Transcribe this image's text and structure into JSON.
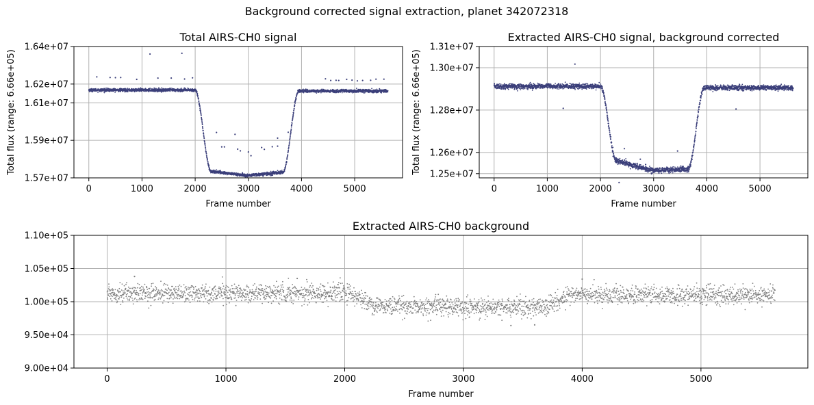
{
  "figure": {
    "suptitle": "Background corrected signal extraction, planet 342072318"
  },
  "chart_data": [
    {
      "type": "scatter",
      "title": "Total AIRS-CH0 signal",
      "xlabel": "Frame number",
      "ylabel": "Total flux (range: 6.66e+05)",
      "xlim": [
        -280,
        5900
      ],
      "ylim": [
        15700000,
        16400000
      ],
      "xticks": [
        0,
        1000,
        2000,
        3000,
        4000,
        5000
      ],
      "xtick_labels": [
        "0",
        "1000",
        "2000",
        "3000",
        "4000",
        "5000"
      ],
      "yticks": [
        15700000,
        15900000,
        16100000,
        16200000,
        16400000
      ],
      "ytick_labels": [
        "1.57e+07",
        "1.59e+07",
        "1.61e+07",
        "1.62e+07",
        "1.64e+07"
      ],
      "grid": true,
      "marker_color": "#3b3f7a",
      "series": [
        {
          "curve": {
            "baseline_before": 16168000,
            "baseline_after": 16163000,
            "ingress_start": 2000,
            "ingress_end": 2300,
            "egress_start": 3650,
            "egress_end": 3950,
            "floor_at_ingress": 15735000,
            "floor_middle": 15712000,
            "floor_at_egress": 15730000,
            "noise": 4000,
            "n_frames": 5625
          },
          "outliers": [
            [
              150,
              16238000
            ],
            [
              400,
              16235000
            ],
            [
              500,
              16234000
            ],
            [
              600,
              16235000
            ],
            [
              900,
              16225000
            ],
            [
              1150,
              16360000
            ],
            [
              1300,
              16232000
            ],
            [
              1550,
              16232000
            ],
            [
              1750,
              16364000
            ],
            [
              1800,
              16227000
            ],
            [
              1950,
              16233000
            ],
            [
              2400,
              15942000
            ],
            [
              2500,
              15865000
            ],
            [
              2550,
              15865000
            ],
            [
              2750,
              15932000
            ],
            [
              2800,
              15853000
            ],
            [
              2850,
              15844000
            ],
            [
              3000,
              15838000
            ],
            [
              3050,
              15818000
            ],
            [
              3250,
              15862000
            ],
            [
              3300,
              15852000
            ],
            [
              3450,
              15866000
            ],
            [
              3550,
              15869000
            ],
            [
              3550,
              15912000
            ],
            [
              3750,
              15943000
            ],
            [
              4450,
              16228000
            ],
            [
              4550,
              16219000
            ],
            [
              4650,
              16220000
            ],
            [
              4700,
              16219000
            ],
            [
              4850,
              16225000
            ],
            [
              4950,
              16221000
            ],
            [
              5050,
              16217000
            ],
            [
              5150,
              16219000
            ],
            [
              5300,
              16220000
            ],
            [
              5400,
              16226000
            ],
            [
              5550,
              16226000
            ]
          ]
        }
      ]
    },
    {
      "type": "scatter",
      "title": "Extracted AIRS-CH0 signal, background corrected",
      "xlabel": "Frame number",
      "ylabel": "Total flux (range: 6.66e+05)",
      "xlim": [
        -280,
        5900
      ],
      "ylim": [
        12480000,
        13100000
      ],
      "xticks": [
        0,
        1000,
        2000,
        3000,
        4000,
        5000
      ],
      "xtick_labels": [
        "0",
        "1000",
        "2000",
        "3000",
        "4000",
        "5000"
      ],
      "yticks": [
        12500000,
        12600000,
        12800000,
        13000000,
        13100000
      ],
      "ytick_labels": [
        "1.25e+07",
        "1.26e+07",
        "1.28e+07",
        "1.30e+07",
        "1.31e+07"
      ],
      "grid": true,
      "marker_color": "#3b3f7a",
      "series": [
        {
          "curve": {
            "baseline_before": 12912000,
            "baseline_after": 12905000,
            "ingress_start": 2000,
            "ingress_end": 2300,
            "egress_start": 3650,
            "egress_end": 3950,
            "floor_at_ingress": 12560000,
            "floor_middle": 12515000,
            "floor_at_egress": 12522000,
            "noise": 6000,
            "n_frames": 5625
          },
          "outliers": [
            [
              1300,
              12808000
            ],
            [
              1520,
              13017000
            ],
            [
              2350,
              12458000
            ],
            [
              2450,
              12618000
            ],
            [
              2700,
              12532000
            ],
            [
              2750,
              12568000
            ],
            [
              2850,
              12543000
            ],
            [
              3450,
              12607000
            ],
            [
              3550,
              12532000
            ],
            [
              4550,
              12805000
            ]
          ]
        }
      ]
    },
    {
      "type": "scatter",
      "title": "Extracted AIRS-CH0 background",
      "xlabel": "Frame number",
      "ylabel": "",
      "xlim": [
        -280,
        5900
      ],
      "ylim": [
        90000,
        110000
      ],
      "xticks": [
        0,
        1000,
        2000,
        3000,
        4000,
        5000
      ],
      "xtick_labels": [
        "0",
        "1000",
        "2000",
        "3000",
        "4000",
        "5000"
      ],
      "yticks": [
        90000,
        95000,
        100000,
        105000,
        110000
      ],
      "ytick_labels": [
        "9.00e+04",
        "9.50e+04",
        "1.00e+05",
        "1.05e+05",
        "1.10e+05"
      ],
      "grid": true,
      "marker_color": "#808080",
      "series": [
        {
          "curve": {
            "baseline_before": 101300,
            "baseline_after": 101000,
            "ingress_start": 2000,
            "ingress_end": 2300,
            "egress_start": 3650,
            "egress_end": 3950,
            "floor_at_ingress": 99300,
            "floor_middle": 99100,
            "floor_at_egress": 99200,
            "noise": 700,
            "n_frames": 5625
          },
          "outliers": [
            [
              230,
              103800
            ],
            [
              1600,
              103500
            ],
            [
              4000,
              103400
            ],
            [
              3400,
              96400
            ],
            [
              3600,
              96500
            ]
          ]
        }
      ]
    }
  ]
}
